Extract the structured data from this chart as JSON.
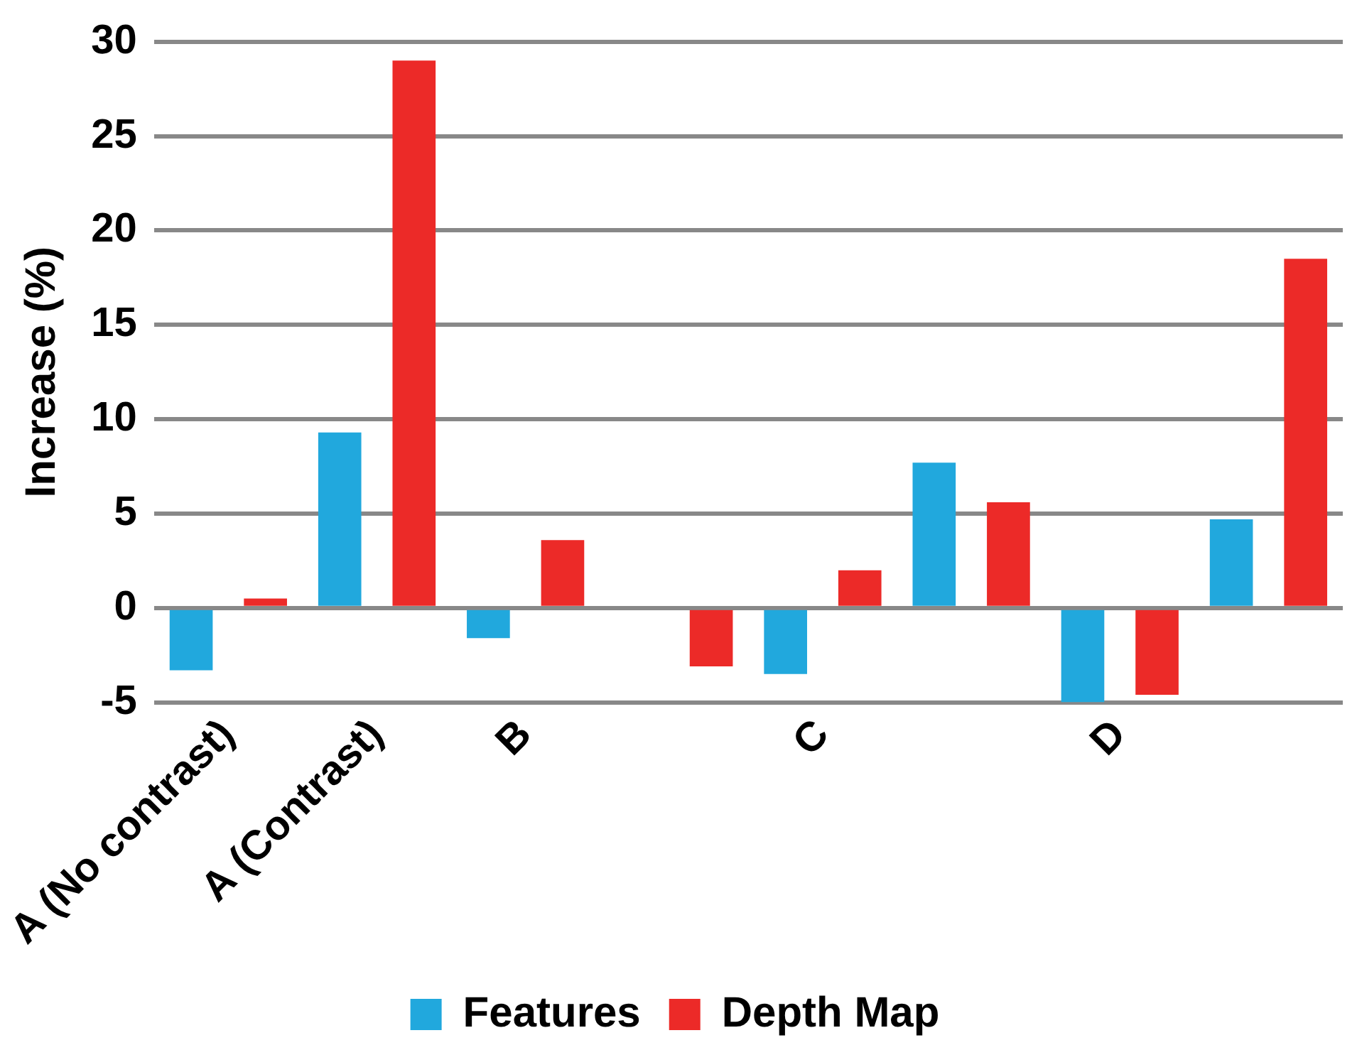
{
  "chart_data": {
    "type": "bar",
    "ylabel": "Increase (%)",
    "categories": [
      "A (No contrast)",
      "A (Contrast)",
      "B",
      null,
      "C",
      null,
      "D",
      null
    ],
    "series": [
      {
        "name": "Features",
        "color": "#21a8dd",
        "values": [
          -3.3,
          9.3,
          -1.6,
          null,
          -3.5,
          7.7,
          -5.0,
          4.7
        ]
      },
      {
        "name": "Depth Map",
        "color": "#ec2a28",
        "values": [
          0.5,
          29.0,
          3.6,
          -3.1,
          2.0,
          5.6,
          -4.6,
          18.5
        ]
      }
    ],
    "ylim": [
      -5,
      30
    ],
    "yticks": [
      -5,
      0,
      5,
      10,
      15,
      20,
      25,
      30
    ],
    "grid": "y",
    "legend": "bottom"
  }
}
